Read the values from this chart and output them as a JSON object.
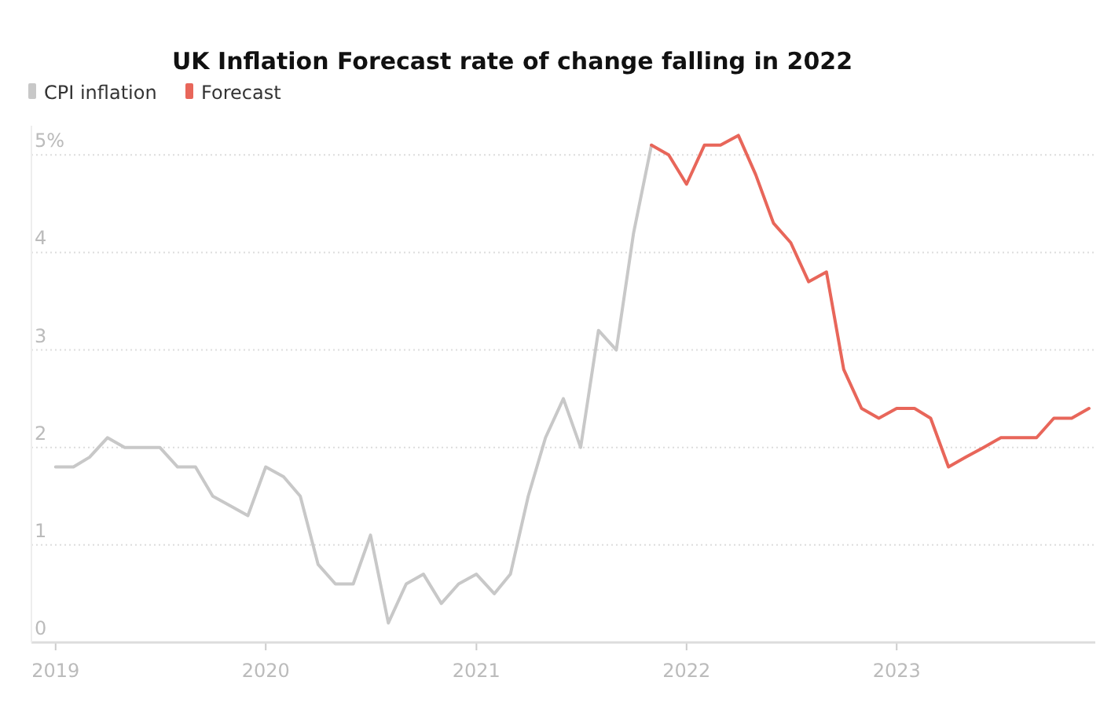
{
  "chart_data": {
    "type": "line",
    "title": "UK Inflation Forecast rate of change falling in 2022",
    "xlim": [
      "2018-11-20",
      "2023-12-12"
    ],
    "xticks": [
      "2019",
      "2020",
      "2021",
      "2022",
      "2023"
    ],
    "ylim": [
      0,
      5.3
    ],
    "yticks": [
      0,
      1,
      2,
      3,
      4,
      {
        "value": 5,
        "label": "5%"
      }
    ],
    "grid": "y",
    "legend": "top left",
    "marker": "none",
    "line_style": "solid",
    "series": [
      {
        "name": "CPI inflation",
        "color": "#c8c8c8",
        "x": [
          "2019-01",
          "2019-02",
          "2019-03",
          "2019-04",
          "2019-05",
          "2019-06",
          "2019-07",
          "2019-08",
          "2019-09",
          "2019-10",
          "2019-11",
          "2019-12",
          "2020-01",
          "2020-02",
          "2020-03",
          "2020-04",
          "2020-05",
          "2020-06",
          "2020-07",
          "2020-08",
          "2020-09",
          "2020-10",
          "2020-11",
          "2020-12",
          "2021-01",
          "2021-02",
          "2021-03",
          "2021-04",
          "2021-05",
          "2021-06",
          "2021-07",
          "2021-08",
          "2021-09",
          "2021-10",
          "2021-11"
        ],
        "values": [
          1.8,
          1.8,
          1.9,
          2.1,
          2.0,
          2.0,
          2.0,
          1.8,
          1.8,
          1.5,
          1.4,
          1.3,
          1.8,
          1.7,
          1.5,
          0.8,
          0.6,
          0.6,
          1.1,
          0.2,
          0.6,
          0.7,
          0.4,
          0.6,
          0.7,
          0.5,
          0.7,
          1.5,
          2.1,
          2.5,
          2.0,
          3.2,
          3.0,
          4.2,
          5.1
        ]
      },
      {
        "name": "Forecast",
        "color": "#e8665a",
        "x": [
          "2021-11",
          "2021-12",
          "2022-01",
          "2022-02",
          "2022-03",
          "2022-04",
          "2022-05",
          "2022-06",
          "2022-07",
          "2022-08",
          "2022-09",
          "2022-10",
          "2022-11",
          "2022-12",
          "2023-01",
          "2023-02",
          "2023-03",
          "2023-04",
          "2023-05",
          "2023-06",
          "2023-07",
          "2023-08",
          "2023-09",
          "2023-10",
          "2023-11",
          "2023-12"
        ],
        "values": [
          5.1,
          5.0,
          4.7,
          5.1,
          5.1,
          5.2,
          4.8,
          4.3,
          4.1,
          3.7,
          3.8,
          2.8,
          2.4,
          2.3,
          2.4,
          2.4,
          2.3,
          1.8,
          1.9,
          2.0,
          2.1,
          2.1,
          2.1,
          2.3,
          2.3,
          2.4
        ]
      }
    ]
  }
}
